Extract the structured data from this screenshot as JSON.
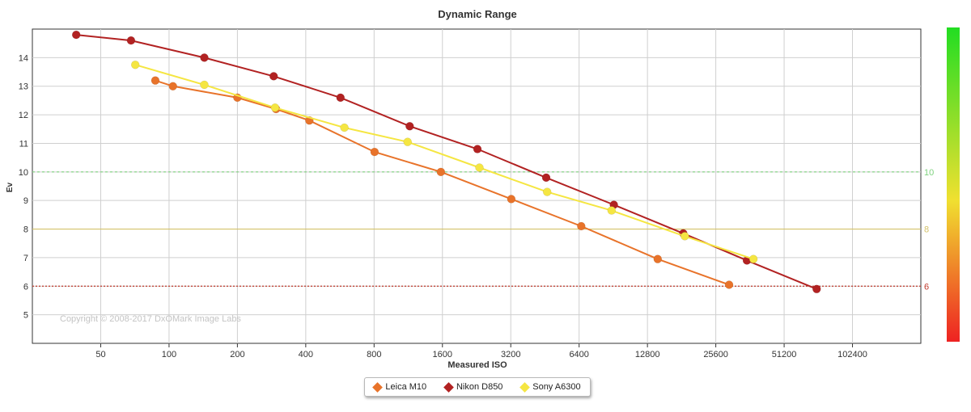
{
  "chart_data": {
    "type": "line",
    "title": "Dynamic Range",
    "xlabel": "Measured ISO",
    "ylabel": "Ev",
    "x_scale": "log2",
    "xlim": [
      25,
      204800
    ],
    "ylim": [
      4,
      15
    ],
    "x_ticks": [
      "50",
      "100",
      "200",
      "400",
      "800",
      "1600",
      "3200",
      "6400",
      "12800",
      "25600",
      "51200",
      "102400"
    ],
    "y_ticks": [
      "5",
      "6",
      "7",
      "8",
      "9",
      "10",
      "11",
      "12",
      "13",
      "14"
    ],
    "grid": true,
    "legend_position": "bottom-center",
    "watermark": "Copyright © 2008-2017 DxOMark Image Labs",
    "reference_lines": [
      {
        "value": 10,
        "label": "10",
        "color": "#7fd27f",
        "style": "dashed"
      },
      {
        "value": 8,
        "label": "8",
        "color": "#d4c26a",
        "style": "solid"
      },
      {
        "value": 6,
        "label": "6",
        "color": "#c0392b",
        "style": "dotted"
      }
    ],
    "colorbar": {
      "top_color": "#22dd22",
      "mid_color": "#f0e030",
      "bottom_color": "#ee2222"
    },
    "series": [
      {
        "name": "Leica M10",
        "color": "#e8732a",
        "points": [
          [
            87,
            13.2
          ],
          [
            104,
            13.0
          ],
          [
            200,
            12.6
          ],
          [
            296,
            12.2
          ],
          [
            415,
            11.8
          ],
          [
            804,
            10.7
          ],
          [
            1575,
            10.0
          ],
          [
            3217,
            9.05
          ],
          [
            6540,
            8.1
          ],
          [
            14200,
            6.95
          ],
          [
            29300,
            6.05
          ]
        ]
      },
      {
        "name": "Nikon D850",
        "color": "#b22222",
        "points": [
          [
            39,
            14.8
          ],
          [
            68,
            14.6
          ],
          [
            143,
            14.0
          ],
          [
            289,
            13.35
          ],
          [
            569,
            12.6
          ],
          [
            1148,
            11.6
          ],
          [
            2282,
            10.8
          ],
          [
            4583,
            9.8
          ],
          [
            9103,
            8.85
          ],
          [
            18400,
            7.85
          ],
          [
            35100,
            6.9
          ],
          [
            71200,
            5.9
          ]
        ]
      },
      {
        "name": "Sony A6300",
        "color": "#f5e642",
        "points": [
          [
            71,
            13.75
          ],
          [
            143,
            13.05
          ],
          [
            293,
            12.25
          ],
          [
            592,
            11.55
          ],
          [
            1124,
            11.05
          ],
          [
            2329,
            10.15
          ],
          [
            4629,
            9.3
          ],
          [
            8895,
            8.65
          ],
          [
            18700,
            7.75
          ],
          [
            37500,
            6.95
          ]
        ]
      }
    ]
  }
}
